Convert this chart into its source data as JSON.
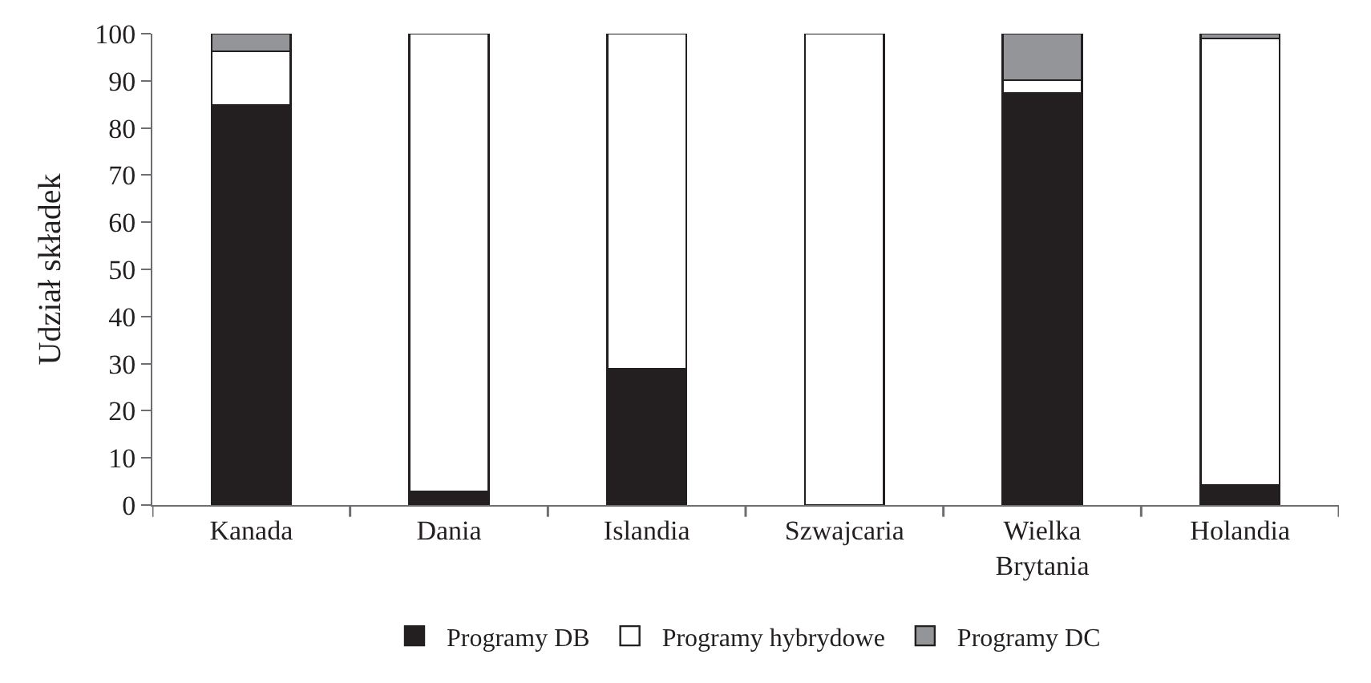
{
  "chart_data": {
    "type": "bar",
    "stacked": true,
    "ylabel": "Udział składek",
    "categories": [
      "Kanada",
      "Dania",
      "Islandia",
      "Szwajcaria",
      "Wielka\nBrytania",
      "Holandia"
    ],
    "series": [
      {
        "name": "Programy DB",
        "color": "#231f20",
        "values": [
          84.8,
          2.8,
          28.9,
          null,
          87.4,
          4.3
        ]
      },
      {
        "name": "Programy hybrydowe",
        "color": "#ffffff",
        "values": [
          11.5,
          97.2,
          71.1,
          100,
          2.7,
          94.7
        ]
      },
      {
        "name": "Programy DC",
        "color": "#939598",
        "values": [
          3.7,
          null,
          null,
          null,
          9.9,
          1.0
        ]
      }
    ],
    "ylim": [
      0,
      100
    ],
    "yticks": [
      0,
      10,
      20,
      30,
      40,
      50,
      60,
      70,
      80,
      90,
      100
    ],
    "legend": "bottom"
  }
}
